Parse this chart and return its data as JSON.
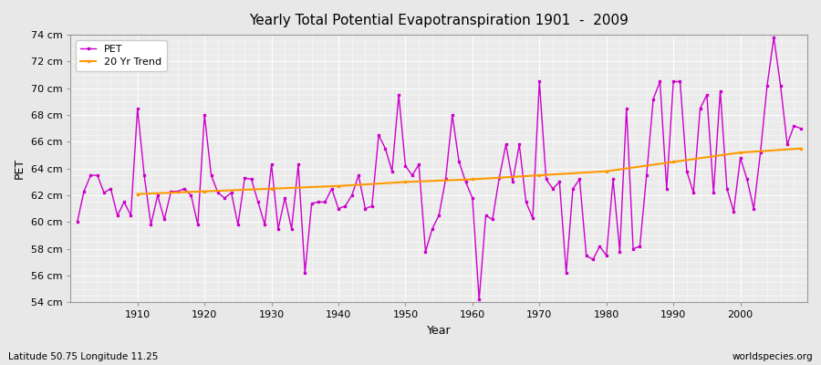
{
  "title": "Yearly Total Potential Evapotranspiration 1901  -  2009",
  "xlabel": "Year",
  "ylabel": "PET",
  "subtitle": "Latitude 50.75 Longitude 11.25",
  "watermark": "worldspecies.org",
  "pet_color": "#cc00cc",
  "trend_color": "#ff9900",
  "background_color": "#e8e8e8",
  "plot_bg_color": "#ebebeb",
  "grid_color": "#ffffff",
  "ylim": [
    54,
    74
  ],
  "yticks": [
    54,
    56,
    58,
    60,
    62,
    64,
    66,
    68,
    70,
    72,
    74
  ],
  "ytick_labels": [
    "54 cm",
    "56 cm",
    "58 cm",
    "60 cm",
    "62 cm",
    "64 cm",
    "66 cm",
    "68 cm",
    "70 cm",
    "72 cm",
    "74 cm"
  ],
  "xlim": [
    1900,
    2010
  ],
  "xticks": [
    1910,
    1920,
    1930,
    1940,
    1950,
    1960,
    1970,
    1980,
    1990,
    2000
  ],
  "years": [
    1901,
    1902,
    1903,
    1904,
    1905,
    1906,
    1907,
    1908,
    1909,
    1910,
    1911,
    1912,
    1913,
    1914,
    1915,
    1916,
    1917,
    1918,
    1919,
    1920,
    1921,
    1922,
    1923,
    1924,
    1925,
    1926,
    1927,
    1928,
    1929,
    1930,
    1931,
    1932,
    1933,
    1934,
    1935,
    1936,
    1937,
    1938,
    1939,
    1940,
    1941,
    1942,
    1943,
    1944,
    1945,
    1946,
    1947,
    1948,
    1949,
    1950,
    1951,
    1952,
    1953,
    1954,
    1955,
    1956,
    1957,
    1958,
    1959,
    1960,
    1961,
    1962,
    1963,
    1964,
    1965,
    1966,
    1967,
    1968,
    1969,
    1970,
    1971,
    1972,
    1973,
    1974,
    1975,
    1976,
    1977,
    1978,
    1979,
    1980,
    1981,
    1982,
    1983,
    1984,
    1985,
    1986,
    1987,
    1988,
    1989,
    1990,
    1991,
    1992,
    1993,
    1994,
    1995,
    1996,
    1997,
    1998,
    1999,
    2000,
    2001,
    2002,
    2003,
    2004,
    2005,
    2006,
    2007,
    2008,
    2009
  ],
  "pet_values": [
    60.0,
    62.3,
    63.5,
    63.5,
    62.2,
    62.5,
    60.5,
    61.5,
    60.5,
    68.5,
    63.5,
    59.8,
    62.0,
    60.2,
    62.3,
    62.3,
    62.5,
    62.0,
    59.8,
    68.0,
    63.5,
    62.2,
    61.8,
    62.2,
    59.8,
    63.3,
    63.2,
    61.5,
    59.8,
    64.3,
    59.5,
    61.8,
    59.5,
    64.3,
    56.2,
    61.4,
    61.5,
    61.5,
    62.5,
    61.0,
    61.2,
    62.0,
    63.5,
    61.0,
    61.2,
    66.5,
    65.5,
    63.8,
    69.5,
    64.2,
    63.5,
    64.3,
    57.8,
    59.5,
    60.5,
    63.2,
    68.0,
    64.5,
    63.0,
    61.8,
    54.2,
    60.5,
    60.2,
    63.3,
    65.8,
    63.0,
    65.8,
    61.5,
    60.3,
    70.5,
    63.2,
    62.5,
    63.0,
    56.2,
    62.5,
    63.2,
    57.5,
    57.2,
    58.2,
    57.5,
    63.2,
    57.8,
    68.5,
    58.0,
    58.2,
    63.5,
    69.2,
    70.5,
    62.5,
    70.5,
    70.5,
    63.8,
    62.2,
    68.5,
    69.5,
    62.2,
    69.8,
    62.5,
    60.8,
    64.8,
    63.2,
    61.0,
    65.2,
    70.2,
    73.8,
    70.2,
    65.8,
    67.2,
    67.0
  ],
  "trend_years": [
    1910,
    1920,
    1930,
    1940,
    1950,
    1960,
    1970,
    1980,
    1990,
    2000,
    2009
  ],
  "trend_values": [
    62.1,
    62.3,
    62.5,
    62.7,
    63.0,
    63.2,
    63.5,
    63.8,
    64.5,
    65.2,
    65.5
  ]
}
